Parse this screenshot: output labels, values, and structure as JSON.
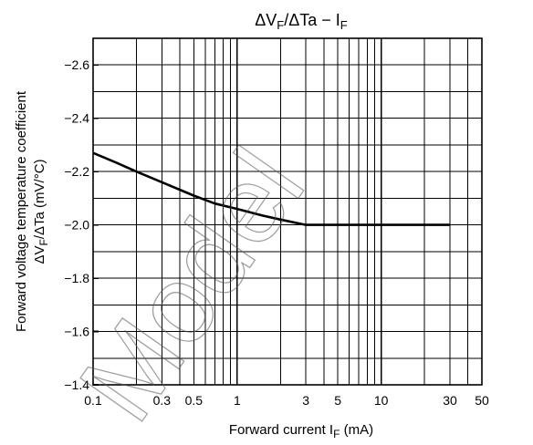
{
  "chart_data": {
    "type": "line",
    "title": "ΔVF/ΔTa − IF",
    "title_parts": {
      "main": "ΔV",
      "sub1": "F",
      "mid": "/ΔTa − I",
      "sub2": "F"
    },
    "xlabel_parts": {
      "main": "Forward current   I",
      "sub": "F",
      "unit": "   (mA)"
    },
    "ylabel_line1": "Forward voltage temperature coefficient",
    "ylabel_line2_parts": {
      "main": "ΔV",
      "sub": "F",
      "rest": "/ΔTa   (mV/°C)"
    },
    "x_scale": "log",
    "xlim": [
      0.1,
      50
    ],
    "ylim": [
      -1.4,
      -2.7
    ],
    "x_ticks": [
      {
        "v": 0.1,
        "label": "0.1"
      },
      {
        "v": 0.3,
        "label": "0.3"
      },
      {
        "v": 0.5,
        "label": "0.5"
      },
      {
        "v": 1,
        "label": "1"
      },
      {
        "v": 3,
        "label": "3"
      },
      {
        "v": 5,
        "label": "5"
      },
      {
        "v": 10,
        "label": "10"
      },
      {
        "v": 30,
        "label": "30"
      },
      {
        "v": 50,
        "label": "50"
      }
    ],
    "y_ticks": [
      {
        "v": -2.6,
        "label": "−2.6"
      },
      {
        "v": -2.4,
        "label": "−2.4"
      },
      {
        "v": -2.2,
        "label": "−2.2"
      },
      {
        "v": -2.0,
        "label": "−2.0"
      },
      {
        "v": -1.8,
        "label": "−1.8"
      },
      {
        "v": -1.6,
        "label": "−1.6"
      },
      {
        "v": -1.4,
        "label": "−1.4"
      }
    ],
    "x_minor_grid": [
      0.2,
      0.3,
      0.4,
      0.5,
      0.6,
      0.7,
      0.8,
      0.9,
      1,
      2,
      3,
      4,
      5,
      6,
      7,
      8,
      9,
      10,
      20,
      30,
      40,
      50
    ],
    "y_minor_grid": [
      -1.5,
      -1.6,
      -1.7,
      -1.8,
      -1.9,
      -2.0,
      -2.1,
      -2.2,
      -2.3,
      -2.4,
      -2.5,
      -2.6
    ],
    "grid": true,
    "series": [
      {
        "x": [
          0.1,
          0.15,
          0.2,
          0.3,
          0.5,
          0.7,
          1.0,
          1.5,
          2.0,
          3.0,
          5.0,
          10,
          20,
          30
        ],
        "y": [
          -2.27,
          -2.23,
          -2.2,
          -2.16,
          -2.11,
          -2.08,
          -2.06,
          -2.035,
          -2.02,
          -2.0,
          -2.0,
          -2.0,
          -2.0,
          -2.0
        ]
      }
    ],
    "watermark": "Model"
  }
}
